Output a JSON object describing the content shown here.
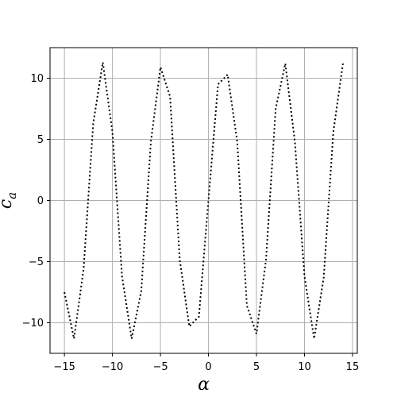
{
  "chart_data": {
    "type": "line",
    "title": "",
    "xlabel": "α",
    "ylabel_main": "c",
    "ylabel_sub": "a",
    "xlim": [
      -16.5,
      15.5
    ],
    "ylim": [
      -12.5,
      12.5
    ],
    "xticks": [
      -15,
      -10,
      -5,
      0,
      5,
      10,
      15
    ],
    "yticks": [
      -10,
      -5,
      0,
      5,
      10
    ],
    "xtick_labels": [
      "−15",
      "−10",
      "−5",
      "0",
      "5",
      "10",
      "15"
    ],
    "ytick_labels": [
      "−10",
      "−5",
      "0",
      "5",
      "10"
    ],
    "grid": true,
    "series": [
      {
        "line_style": "dotted",
        "color": "#000000",
        "x": [
          -15,
          -14,
          -13,
          -12,
          -11,
          -10,
          -9,
          -8,
          -7,
          -6,
          -5,
          -4,
          -3,
          -2,
          -1,
          0,
          1,
          2,
          3,
          4,
          5,
          6,
          7,
          8,
          9,
          10,
          11,
          12,
          13,
          14
        ],
        "y": [
          -7.5,
          -11.3,
          -5.6,
          6.3,
          11.3,
          5.6,
          -6.2,
          -11.3,
          -7.4,
          4.8,
          10.9,
          8.5,
          -4.8,
          -10.3,
          -9.5,
          0,
          9.5,
          10.3,
          4.8,
          -8.6,
          -10.9,
          -4.8,
          7.5,
          11.2,
          4.8,
          -6.2,
          -11.3,
          -6.3,
          5.6,
          11.2
        ]
      }
    ]
  }
}
